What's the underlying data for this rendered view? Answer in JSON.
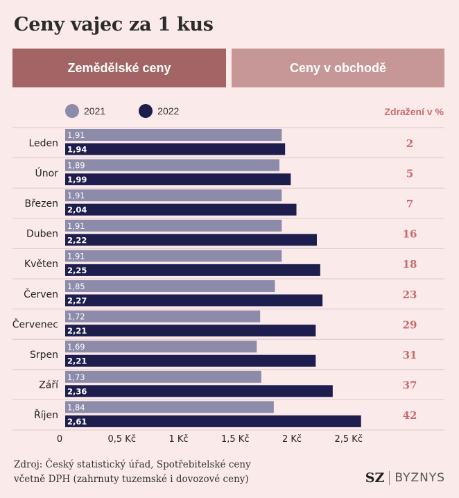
{
  "title": "Ceny vajec za 1 kus",
  "tabs": [
    {
      "label": "Zemědělské ceny",
      "active": true
    },
    {
      "label": "Ceny v obchodě",
      "active": false
    }
  ],
  "legend": [
    {
      "label": "2021",
      "color": "#8c8ba9"
    },
    {
      "label": "2022",
      "color": "#1e1e4e"
    }
  ],
  "pct_header": "Zdražení v %",
  "chart_data": {
    "type": "bar",
    "orientation": "horizontal",
    "title": "Ceny vajec za 1 kus",
    "categories": [
      "Leden",
      "Únor",
      "Březen",
      "Duben",
      "Květen",
      "Červen",
      "Červenec",
      "Srpen",
      "Září",
      "Říjen"
    ],
    "series": [
      {
        "name": "2021",
        "color": "#8c8ba9",
        "values": [
          1.91,
          1.89,
          1.91,
          1.91,
          1.91,
          1.85,
          1.72,
          1.69,
          1.73,
          1.84
        ],
        "labels": [
          "1,91",
          "1,89",
          "1,91",
          "1,91",
          "1,91",
          "1,85",
          "1,72",
          "1,69",
          "1,73",
          "1,84"
        ]
      },
      {
        "name": "2022",
        "color": "#1e1e4e",
        "values": [
          1.94,
          1.99,
          2.04,
          2.22,
          2.25,
          2.27,
          2.21,
          2.21,
          2.36,
          2.61
        ],
        "labels": [
          "1,94",
          "1,99",
          "2,04",
          "2,22",
          "2,25",
          "2,27",
          "2,21",
          "2,21",
          "2,36",
          "2,61"
        ]
      }
    ],
    "increase_pct": [
      "2",
      "5",
      "7",
      "16",
      "18",
      "23",
      "29",
      "31",
      "37",
      "42"
    ],
    "xticks": [
      0,
      0.5,
      1,
      1.5,
      2,
      2.5
    ],
    "xtick_labels": [
      "0",
      "0,5 Kč",
      "1 Kč",
      "1,5 Kč",
      "2 Kč",
      "2,5 Kč"
    ],
    "xlim": [
      0,
      2.8
    ],
    "grid": false,
    "legend_position": "top"
  },
  "footer": {
    "line1": "Zdroj: Český statistický úřad, Spotřebitelské ceny",
    "line2": "včetně DPH (zahrnuty tuzemské i dovozové ceny)"
  },
  "brand": {
    "sz": "SZ",
    "byznys": "BYZNYS"
  }
}
